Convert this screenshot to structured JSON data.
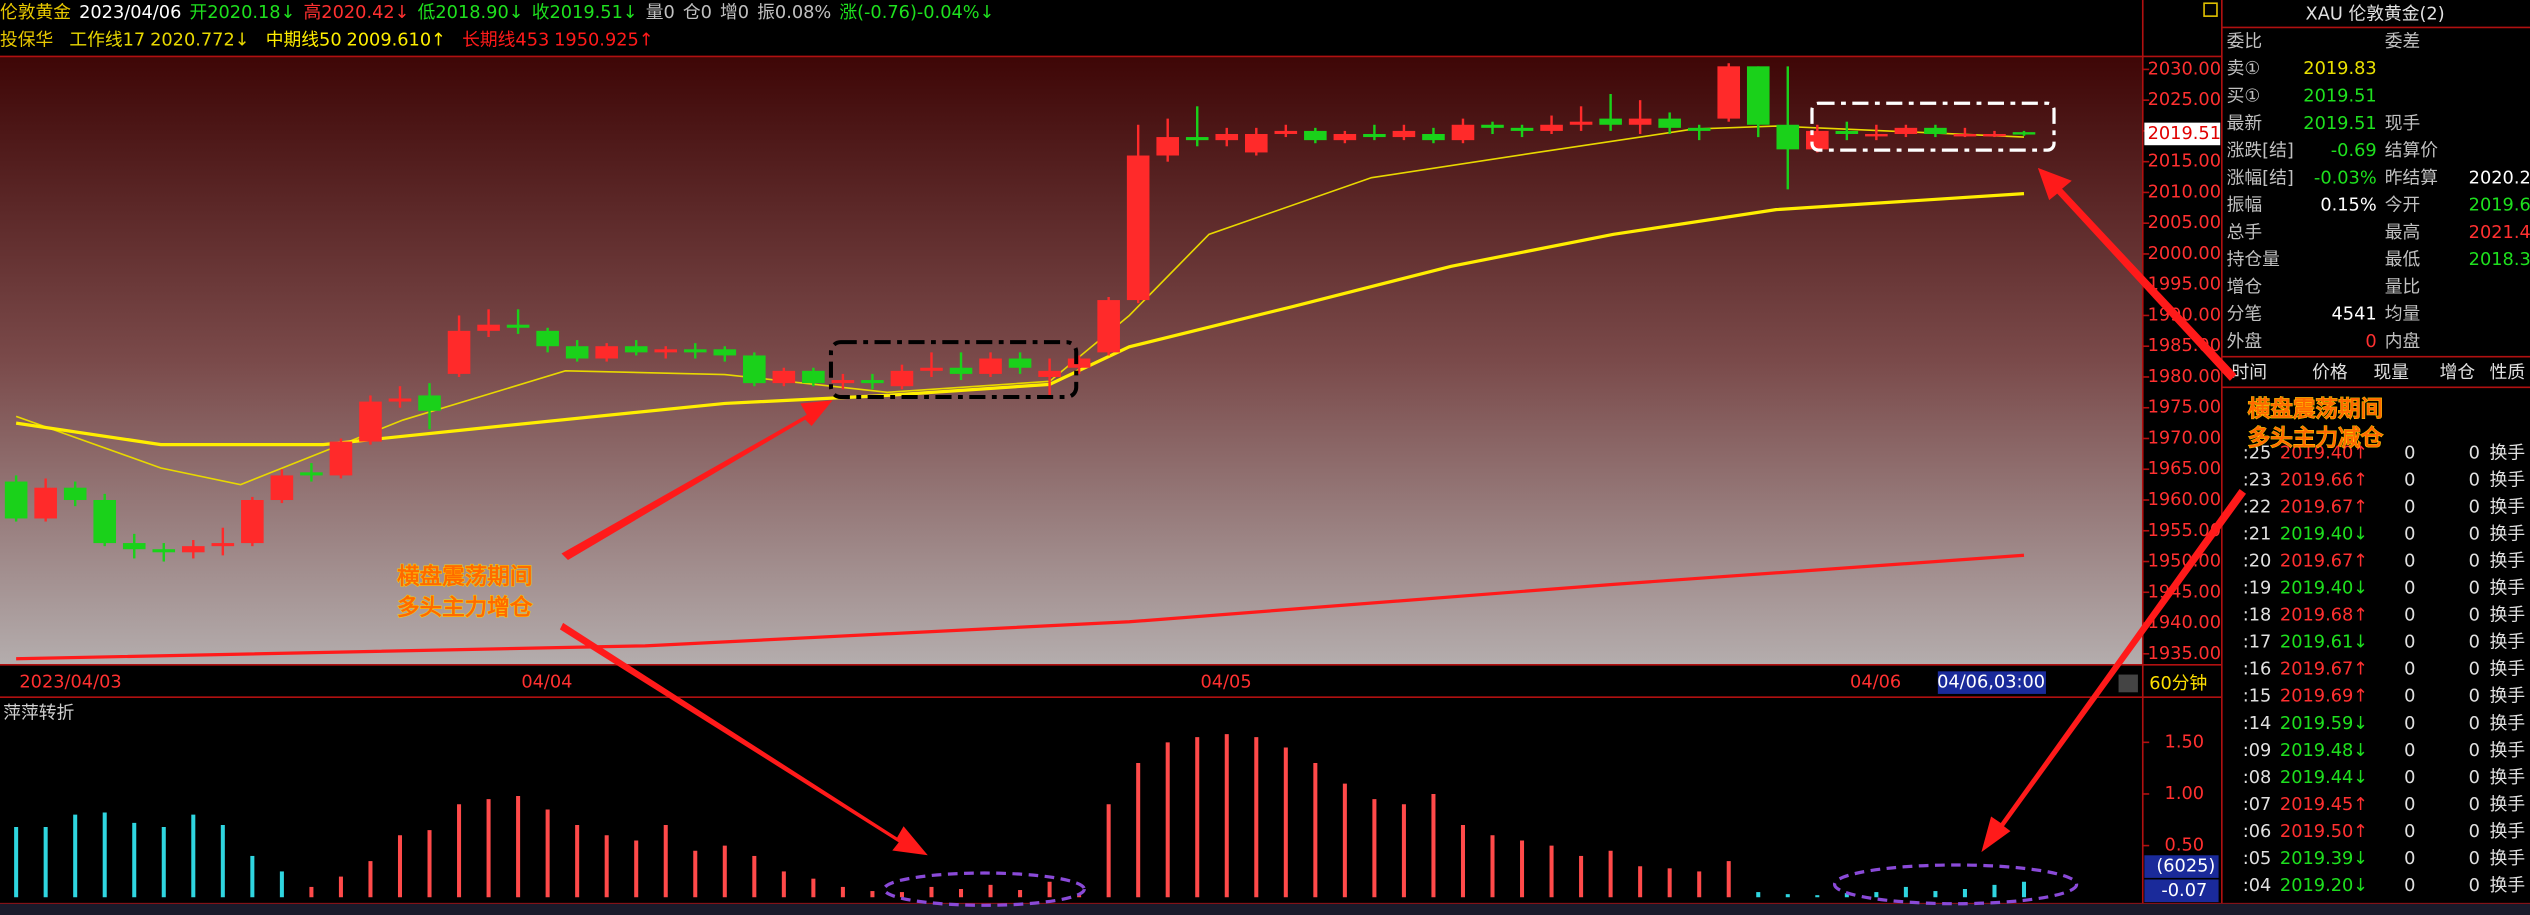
{
  "header": {
    "items": [
      "伦敦黄金",
      "2023/04/06",
      "开2020.18↓",
      "高2020.42↓",
      "低2018.90↓",
      "收2019.51↓",
      "量0",
      "仓0",
      "增0",
      "振0.08%",
      "涨(-0.76)-0.04%↓"
    ],
    "indicator_name": "投保华"
  },
  "chart_data": [
    {
      "type": "candlestick",
      "categories": [
        "2023/04/03",
        null,
        null,
        null,
        null,
        null,
        null,
        null,
        null,
        null,
        null,
        null,
        null,
        null,
        null,
        null,
        null,
        "04/04",
        null,
        null,
        null,
        null,
        null,
        null,
        null,
        null,
        null,
        null,
        null,
        null,
        null,
        null,
        null,
        null,
        null,
        null,
        null,
        null,
        null,
        null,
        "04/05",
        null,
        null,
        null,
        null,
        null,
        null,
        null,
        null,
        null,
        null,
        null,
        null,
        null,
        null,
        null,
        null,
        null,
        null,
        null,
        null,
        null,
        "04/06",
        null,
        null,
        null,
        null,
        null,
        null
      ],
      "open": [
        1963,
        1957,
        1962,
        1960,
        1953,
        1952,
        1951.5,
        1952.5,
        1953,
        1960,
        1964.5,
        1964,
        1969.5,
        1976,
        1977,
        1980.5,
        1987.5,
        1988.5,
        1987.5,
        1985,
        1983,
        1985,
        1984,
        1984.5,
        1984.5,
        1983.5,
        1979,
        1981,
        1979,
        1979.5,
        1978.5,
        1981,
        1981.5,
        1980.5,
        1983,
        1980,
        1981.5,
        1984,
        1992.5,
        2016,
        2019,
        2018.5,
        2016.5,
        2019.5,
        2020,
        2018.5,
        2019.5,
        2019,
        2019.5,
        2018.5,
        2021,
        2020.5,
        2020,
        2021,
        2022,
        2021,
        2022,
        2020.5,
        2022,
        2030.5,
        2021,
        2017,
        2020,
        2019.5,
        2019.5,
        2020.5,
        2019.5,
        2019.5,
        2019.8
      ],
      "high": [
        1964,
        1963.5,
        1963,
        1961,
        1954.5,
        1953,
        1953.5,
        1955.5,
        1960.5,
        1965,
        1966,
        1970,
        1977,
        1978.5,
        1979,
        1990,
        1991,
        1991,
        1988,
        1986,
        1985.5,
        1986,
        1985,
        1985.5,
        1985,
        1984,
        1981.5,
        1981.5,
        1980.5,
        1980.5,
        1982,
        1984,
        1984,
        1984,
        1984,
        1983,
        1983.5,
        1993,
        2021,
        2022,
        2024,
        2020.5,
        2020.5,
        2021,
        2020.5,
        2020,
        2021,
        2021,
        2020.5,
        2022,
        2021.5,
        2021,
        2022.5,
        2024,
        2026,
        2025,
        2023,
        2021,
        2031,
        2030.5,
        2030.5,
        2021,
        2021.5,
        2021,
        2021,
        2021,
        2020.5,
        2020,
        2020
      ],
      "low": [
        1956.5,
        1956.5,
        1959,
        1952.5,
        1950.5,
        1950,
        1950.5,
        1951,
        1952.5,
        1959.5,
        1963,
        1963.5,
        1969,
        1975,
        1971.5,
        1980,
        1986.5,
        1987,
        1984,
        1982.5,
        1982.5,
        1983.5,
        1983,
        1983,
        1982.5,
        1978.5,
        1978.5,
        1978.5,
        1978,
        1978,
        1978,
        1980,
        1979.5,
        1980,
        1980.5,
        1977,
        1980.5,
        1983.5,
        1992,
        2015,
        2017.5,
        2017.5,
        2016,
        2019,
        2018,
        2018,
        2018.5,
        2018.5,
        2018,
        2018,
        2019.5,
        2019,
        2019.5,
        2020,
        2020,
        2019.5,
        2019.5,
        2018.5,
        2021.5,
        2019,
        2010.5,
        2016.5,
        2018.5,
        2018.5,
        2019,
        2019,
        2019,
        2019,
        2019.2
      ],
      "close": [
        1957,
        1962,
        1960,
        1953,
        1952,
        1951.5,
        1952.5,
        1953,
        1960,
        1964,
        1964,
        1969.5,
        1976,
        1976.5,
        1974.5,
        1987.5,
        1988.5,
        1988,
        1985,
        1983,
        1985,
        1984,
        1984.5,
        1984,
        1983.5,
        1979,
        1981,
        1979,
        1979.5,
        1979,
        1981,
        1981.5,
        1980.5,
        1983,
        1981.5,
        1981,
        1983,
        1992.5,
        2016,
        2019,
        2018.5,
        2019.5,
        2019.5,
        2020,
        2018.5,
        2019.5,
        2019,
        2020,
        2018.5,
        2021,
        2020.5,
        2020,
        2021,
        2021.5,
        2021,
        2022,
        2020.5,
        2020,
        2030.5,
        2021,
        2017,
        2020,
        2019.5,
        2019.5,
        2020.5,
        2019.5,
        2019.5,
        2019.5,
        2019.5
      ],
      "up_color": "#ff2a2a",
      "down_color": "#1ad11a",
      "ylim": [
        1933.2,
        2032.1
      ],
      "yticks": [
        {
          "value": 2030,
          "label": "2030.00"
        },
        {
          "value": 2025,
          "label": "2025.00"
        },
        {
          "value": 2020,
          "label": "2020.00"
        },
        {
          "value": 2015,
          "label": "2015.00"
        },
        {
          "value": 2010,
          "label": "2010.00"
        },
        {
          "value": 2005,
          "label": "2005.00"
        },
        {
          "value": 2000,
          "label": "2000.00"
        },
        {
          "value": 1995,
          "label": "1995.00"
        },
        {
          "value": 1990,
          "label": "1990.00"
        },
        {
          "value": 1985,
          "label": "1985.00"
        },
        {
          "value": 1980,
          "label": "1980.00"
        },
        {
          "value": 1975,
          "label": "1975.00"
        },
        {
          "value": 1970,
          "label": "1970.00"
        },
        {
          "value": 1965,
          "label": "1965.00"
        },
        {
          "value": 1960,
          "label": "1960.00"
        },
        {
          "value": 1955,
          "label": "1955.00"
        },
        {
          "value": 1950,
          "label": "1950.00"
        },
        {
          "value": 1945,
          "label": "1945.00"
        },
        {
          "value": 1940,
          "label": "1940.00"
        },
        {
          "value": 1935,
          "label": "1935.00"
        }
      ],
      "last_price": 2019.51,
      "cursor_label": "04/06,03:00",
      "period": "60分钟",
      "series": [
        {
          "name": "工作线17",
          "value_label": "2020.772↓",
          "color": "#e8d800",
          "width": 1,
          "x": [
            0,
            4.9,
            7.6,
            13.1,
            18.6,
            24,
            29.5,
            35,
            37.7,
            40.4,
            45.9,
            51.4,
            56.8,
            59.6,
            68
          ],
          "values": [
            1973.6,
            1965.2,
            1962.5,
            1973,
            1981,
            1980.4,
            1977.5,
            1979.3,
            1990,
            2003.2,
            2012.4,
            2016.4,
            2020.3,
            2020.8,
            2019
          ]
        },
        {
          "name": "中期线50",
          "value_label": "2009.610↑",
          "color": "#ffee00",
          "width": 2,
          "x": [
            0,
            4.9,
            10.4,
            15.8,
            24,
            29.5,
            35,
            37.7,
            43.2,
            48.6,
            54.1,
            59.6,
            68
          ],
          "values": [
            1972.5,
            1969,
            1969,
            1971.7,
            1975.7,
            1977,
            1978.8,
            1984.9,
            1991.4,
            1998,
            2003.2,
            2007.2,
            2009.8
          ]
        },
        {
          "name": "长期线453",
          "value_label": "1950.925↑",
          "color": "#ff1a1a",
          "width": 2,
          "x": [
            0,
            21.3,
            37.7,
            54.1,
            68
          ],
          "values": [
            1934.2,
            1936.3,
            1940.2,
            1946.3,
            1951
          ]
        }
      ]
    },
    {
      "type": "bar",
      "title": "萍萍转折",
      "values": [
        0.68,
        0.68,
        0.8,
        0.82,
        0.72,
        0.68,
        0.8,
        0.7,
        0.4,
        0.25,
        0.1,
        0.2,
        0.35,
        0.6,
        0.65,
        0.9,
        0.95,
        0.98,
        0.85,
        0.7,
        0.6,
        0.55,
        0.7,
        0.45,
        0.5,
        0.4,
        0.25,
        0.18,
        0.1,
        0.06,
        0.05,
        0.1,
        0.08,
        0.12,
        0.07,
        0.15,
        0.02,
        0.9,
        1.3,
        1.5,
        1.55,
        1.58,
        1.55,
        1.45,
        1.3,
        1.1,
        0.95,
        0.9,
        1.0,
        0.7,
        0.6,
        0.55,
        0.5,
        0.4,
        0.45,
        0.3,
        0.28,
        0.25,
        0.35,
        0.05,
        0.03,
        0.02,
        0.04,
        0.05,
        0.1,
        0.06,
        0.08,
        0.12,
        0.15
      ],
      "colors": [
        "#2fd6e0",
        "#2fd6e0",
        "#2fd6e0",
        "#2fd6e0",
        "#2fd6e0",
        "#2fd6e0",
        "#2fd6e0",
        "#2fd6e0",
        "#2fd6e0",
        "#2fd6e0",
        "#ff4a4a",
        "#ff4a4a",
        "#ff4a4a",
        "#ff4a4a",
        "#ff4a4a",
        "#ff4a4a",
        "#ff4a4a",
        "#ff4a4a",
        "#ff4a4a",
        "#ff4a4a",
        "#ff4a4a",
        "#ff4a4a",
        "#ff4a4a",
        "#ff4a4a",
        "#ff4a4a",
        "#ff4a4a",
        "#ff4a4a",
        "#ff4a4a",
        "#ff4a4a",
        "#ff4a4a",
        "#ff4a4a",
        "#ff4a4a",
        "#ff4a4a",
        "#ff4a4a",
        "#ff4a4a",
        "#ff4a4a",
        "#ff4a4a",
        "#ff4a4a",
        "#ff4a4a",
        "#ff4a4a",
        "#ff4a4a",
        "#ff4a4a",
        "#ff4a4a",
        "#ff4a4a",
        "#ff4a4a",
        "#ff4a4a",
        "#ff4a4a",
        "#ff4a4a",
        "#ff4a4a",
        "#ff4a4a",
        "#ff4a4a",
        "#ff4a4a",
        "#ff4a4a",
        "#ff4a4a",
        "#ff4a4a",
        "#ff4a4a",
        "#ff4a4a",
        "#ff4a4a",
        "#ff4a4a",
        "#2fd6e0",
        "#2fd6e0",
        "#2fd6e0",
        "#2fd6e0",
        "#2fd6e0",
        "#2fd6e0",
        "#2fd6e0",
        "#2fd6e0",
        "#2fd6e0",
        "#2fd6e0"
      ],
      "ylim": [
        -0.0625,
        1.9375
      ],
      "yticks": [
        {
          "value": 1.5,
          "label": "1.50"
        },
        {
          "value": 1,
          "label": "1.00"
        },
        {
          "value": 0.5,
          "label": "0.50"
        }
      ],
      "volume_label": "(6025)",
      "last_label": "-0.07"
    }
  ],
  "quote": {
    "title": "XAU 伦敦黄金(2)",
    "rows": [
      {
        "label": "委比",
        "label2": "委差"
      },
      {
        "label": "卖①",
        "value": "2019.83"
      },
      {
        "label": "买①",
        "value": "2019.51"
      },
      {
        "label": "最新",
        "value": "2019.51",
        "label2": "现手"
      },
      {
        "label": "涨跌[结]",
        "value": "-0.69",
        "label2": "结算价"
      },
      {
        "label": "涨幅[结]",
        "value": "-0.03%",
        "label2": "昨结算",
        "value2": "2020.2"
      },
      {
        "label": "振幅",
        "value": "0.15%",
        "label2": "今开",
        "value2": "2019.6"
      },
      {
        "label": "总手",
        "label2": "最高",
        "value2": "2021.4"
      },
      {
        "label": "持仓量",
        "label2": "最低",
        "value2": "2018.3"
      },
      {
        "label": "增仓",
        "label2": "量比"
      },
      {
        "label": "分笔",
        "value": "4541",
        "label2": "均量"
      },
      {
        "label": "外盘",
        "value": "0",
        "label2": "内盘"
      }
    ]
  },
  "ticks": {
    "headers": [
      "时间",
      "价格",
      "现量",
      "增仓",
      "性质"
    ],
    "rows": [
      [
        ":25",
        "2019.40↑",
        "0",
        "0",
        "换手"
      ],
      [
        ":23",
        "2019.66↑",
        "0",
        "0",
        "换手"
      ],
      [
        ":22",
        "2019.67↑",
        "0",
        "0",
        "换手"
      ],
      [
        ":21",
        "2019.40↓",
        "0",
        "0",
        "换手"
      ],
      [
        ":20",
        "2019.67↑",
        "0",
        "0",
        "换手"
      ],
      [
        ":19",
        "2019.40↓",
        "0",
        "0",
        "换手"
      ],
      [
        ":18",
        "2019.68↑",
        "0",
        "0",
        "换手"
      ],
      [
        ":17",
        "2019.61↓",
        "0",
        "0",
        "换手"
      ],
      [
        ":16",
        "2019.67↑",
        "0",
        "0",
        "换手"
      ],
      [
        ":15",
        "2019.69↑",
        "0",
        "0",
        "换手"
      ],
      [
        ":14",
        "2019.59↓",
        "0",
        "0",
        "换手"
      ],
      [
        ":09",
        "2019.48↓",
        "0",
        "0",
        "换手"
      ],
      [
        ":08",
        "2019.44↓",
        "0",
        "0",
        "换手"
      ],
      [
        ":07",
        "2019.45↑",
        "0",
        "0",
        "换手"
      ],
      [
        ":06",
        "2019.50↑",
        "0",
        "0",
        "换手"
      ],
      [
        ":05",
        "2019.39↓",
        "0",
        "0",
        "换手"
      ],
      [
        ":04",
        "2019.20↓",
        "0",
        "0",
        "换手"
      ]
    ]
  },
  "annotations": [
    {
      "lines": [
        "横盘震荡期间",
        "多头主力增仓"
      ]
    },
    {
      "lines": [
        "横盘震荡期间",
        "多头主力减仓"
      ]
    }
  ]
}
